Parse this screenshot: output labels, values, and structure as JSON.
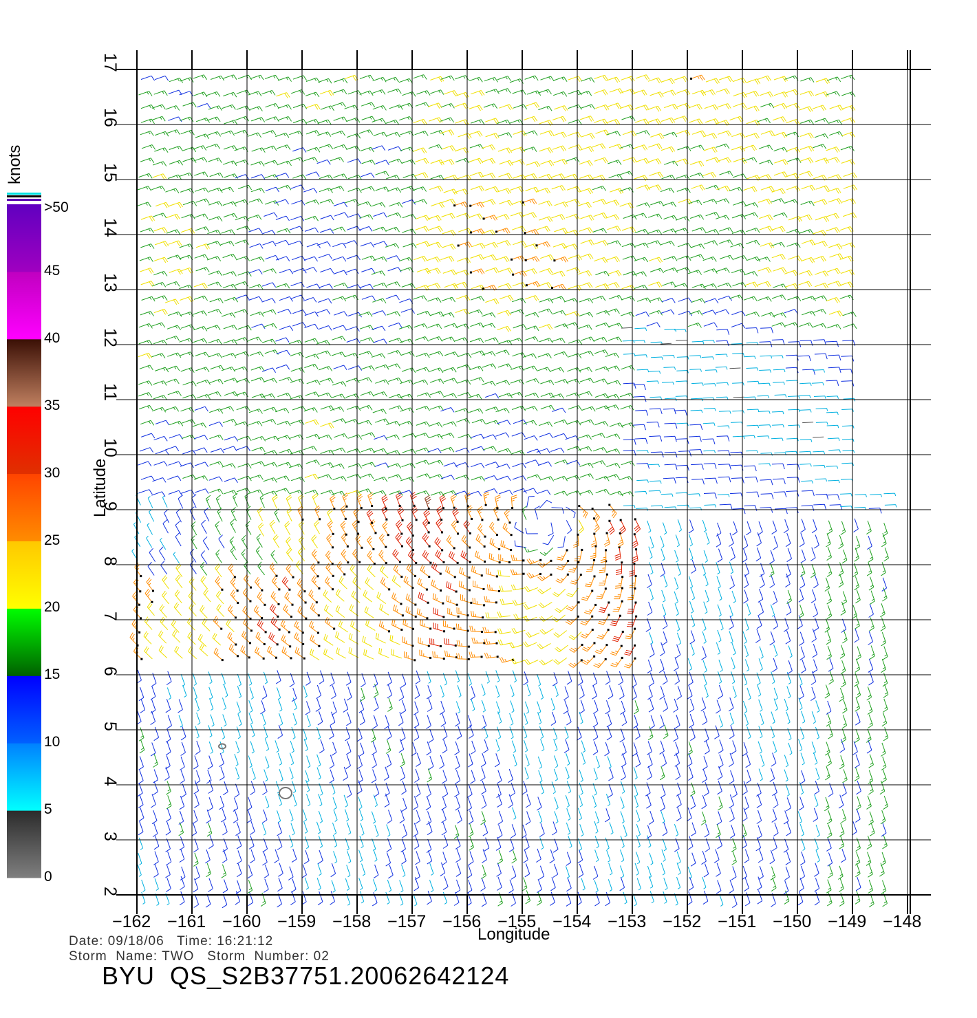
{
  "map": {
    "x_axis_label": "Longitude",
    "y_axis_label": "Latitude",
    "lon_ticks": [
      "-162",
      "-161",
      "-160",
      "-159",
      "-158",
      "-157",
      "-156",
      "-155",
      "-154",
      "-153",
      "-152",
      "-151",
      "-150",
      "-149",
      "-148"
    ],
    "lat_ticks": [
      "2",
      "3",
      "4",
      "5",
      "6",
      "7",
      "8",
      "9",
      "10",
      "11",
      "12",
      "13",
      "14",
      "15",
      "16",
      "17"
    ],
    "lon_range": [
      -162,
      -148.5
    ],
    "lat_range": [
      2,
      17
    ],
    "storm_center": {
      "lon": -154.6,
      "lat": 8.8
    }
  },
  "colorbar": {
    "unit": "knots",
    "labels": [
      "0",
      "5",
      "10",
      "15",
      "20",
      "25",
      "30",
      "35",
      "40",
      "45",
      ">50"
    ],
    "bands": [
      {
        "from": 0,
        "to": 5,
        "colors": [
          "#7f7f7f",
          "#2b2b2b"
        ]
      },
      {
        "from": 5,
        "to": 10,
        "colors": [
          "#00ffff",
          "#0080ff"
        ]
      },
      {
        "from": 10,
        "to": 15,
        "colors": [
          "#0060ff",
          "#0000ff"
        ]
      },
      {
        "from": 15,
        "to": 20,
        "colors": [
          "#006000",
          "#00ff00"
        ]
      },
      {
        "from": 20,
        "to": 25,
        "colors": [
          "#ffff00",
          "#ffc800"
        ]
      },
      {
        "from": 25,
        "to": 30,
        "colors": [
          "#ff8c00",
          "#ff4400"
        ]
      },
      {
        "from": 30,
        "to": 35,
        "colors": [
          "#e03000",
          "#ff0000"
        ]
      },
      {
        "from": 35,
        "to": 40,
        "colors": [
          "#c08060",
          "#3a0f05"
        ]
      },
      {
        "from": 40,
        "to": 45,
        "colors": [
          "#ff00ff",
          "#c000c0"
        ]
      },
      {
        "from": 45,
        "to": 50,
        "colors": [
          "#a000c0",
          "#6000c0"
        ]
      }
    ]
  },
  "footer": {
    "date_line": "Date: 09/18/06   Time: 16:21:12",
    "storm_line": "Storm  Name: TWO   Storm  Number: 02",
    "id_line": "BYU  QS_S2B37751.20062642124"
  }
}
